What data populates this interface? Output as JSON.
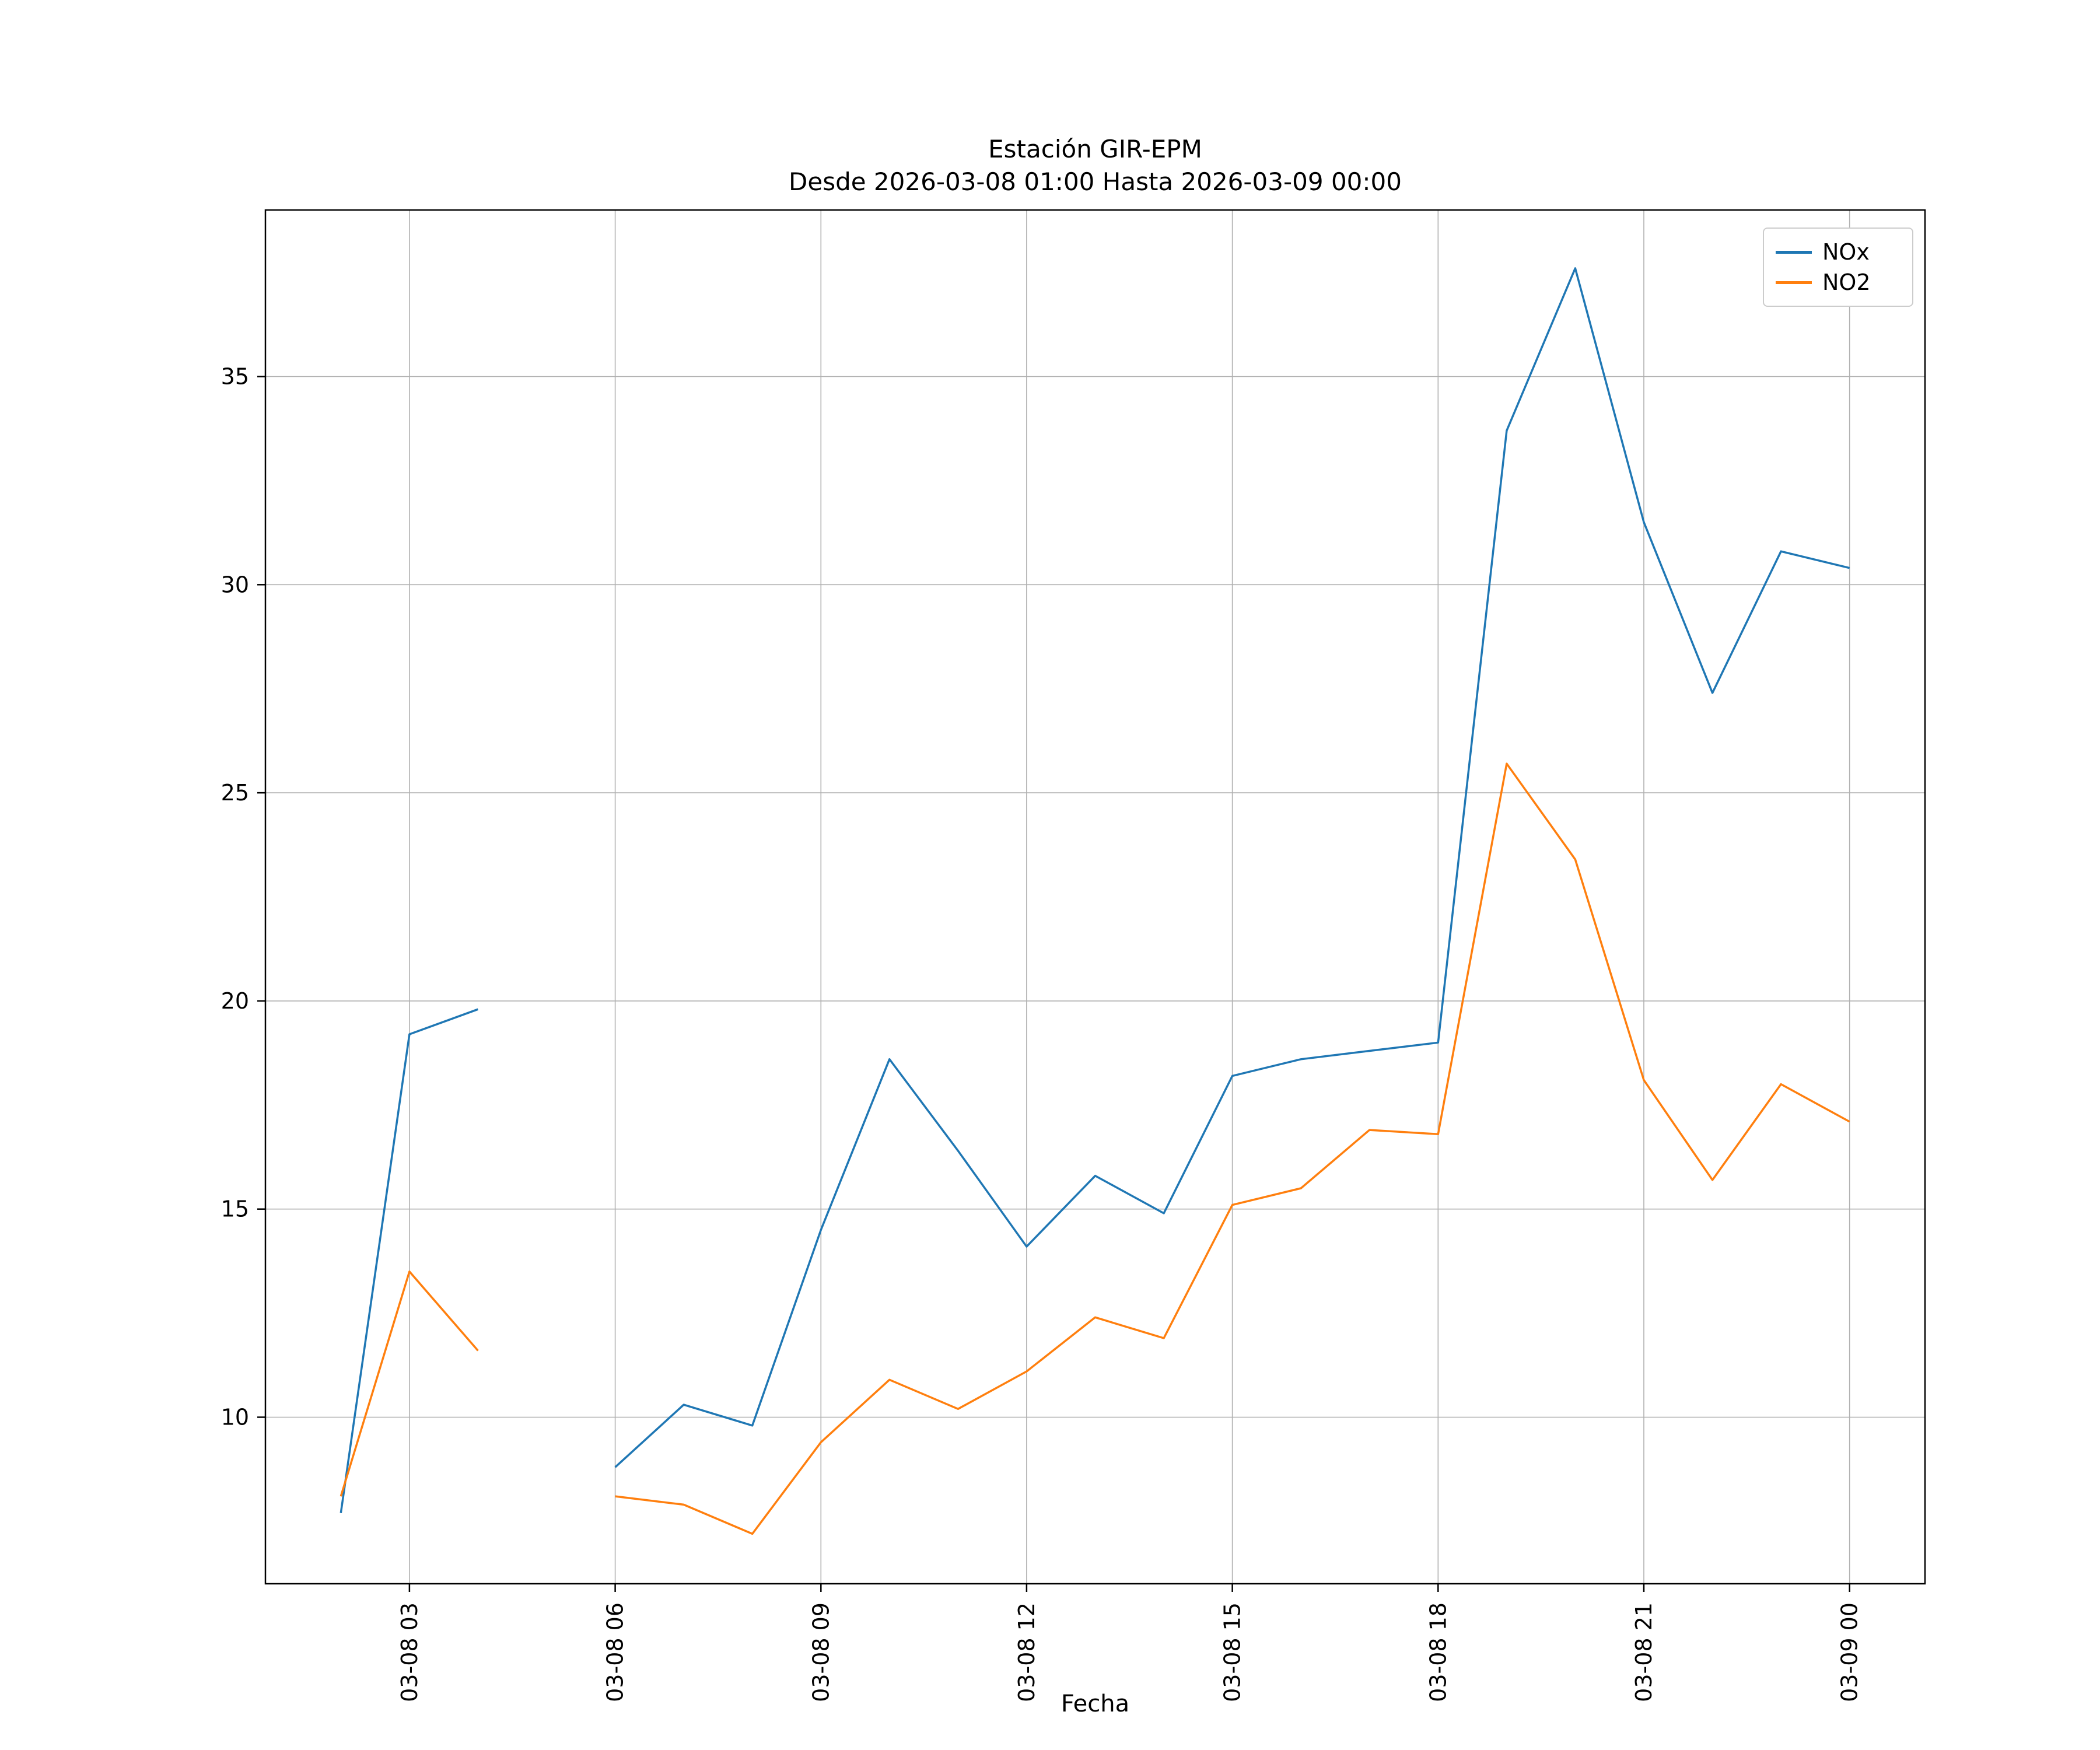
{
  "chart_data": {
    "type": "line",
    "title": "Estación GIR-EPM",
    "subtitle": "Desde 2026-03-08 01:00 Hasta 2026-03-09 00:00",
    "xlabel": "Fecha",
    "ylabel": "",
    "grid": true,
    "legend_position": "upper right",
    "xlim": [
      0.9,
      25.1
    ],
    "ylim": [
      6,
      39
    ],
    "yticks": [
      10,
      15,
      20,
      25,
      30,
      35
    ],
    "xticks": {
      "positions": [
        3,
        6,
        9,
        12,
        15,
        18,
        21,
        24
      ],
      "labels": [
        "03-08 03",
        "03-08 06",
        "03-08 09",
        "03-08 12",
        "03-08 15",
        "03-08 18",
        "03-08 21",
        "03-09 00"
      ]
    },
    "x": [
      2,
      3,
      4,
      5,
      6,
      7,
      8,
      9,
      10,
      11,
      12,
      13,
      14,
      15,
      16,
      17,
      18,
      19,
      20,
      21,
      22,
      23,
      24
    ],
    "series": [
      {
        "name": "NOx",
        "color": "#1f77b4",
        "values": [
          7.7,
          19.2,
          19.8,
          null,
          8.8,
          10.3,
          9.8,
          14.5,
          18.6,
          16.4,
          14.1,
          15.8,
          14.9,
          18.2,
          18.6,
          18.8,
          19.0,
          33.7,
          37.6,
          31.5,
          27.4,
          30.8,
          30.4
        ]
      },
      {
        "name": "NO2",
        "color": "#ff7f0e",
        "values": [
          8.1,
          13.5,
          11.6,
          null,
          8.1,
          7.9,
          7.2,
          9.4,
          10.9,
          10.2,
          11.1,
          12.4,
          11.9,
          15.1,
          15.5,
          16.9,
          16.8,
          25.7,
          23.4,
          18.1,
          15.7,
          18.0,
          17.1
        ]
      }
    ]
  }
}
